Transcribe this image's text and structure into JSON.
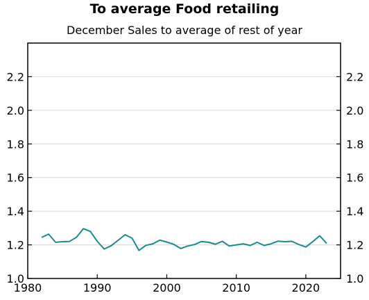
{
  "chart_data": {
    "type": "line",
    "title": "To average Food retailing",
    "subtitle": "December Sales to average of rest of year",
    "xlabel": "",
    "ylabel": "",
    "xlim": [
      1980,
      2025
    ],
    "ylim": [
      1.0,
      2.4
    ],
    "x_ticks": [
      1980,
      1990,
      2000,
      2010,
      2020
    ],
    "y_ticks": [
      1.0,
      1.2,
      1.4,
      1.6,
      1.8,
      2.0,
      2.2
    ],
    "y_tick_labels": [
      "1.0",
      "1.2",
      "1.4",
      "1.6",
      "1.8",
      "2.0",
      "2.2"
    ],
    "grid": "horizontal",
    "line_color": "#1a8a8a",
    "series": [
      {
        "x": [
          1982,
          1983,
          1984,
          1985,
          1986,
          1987,
          1988,
          1989,
          1990,
          1991,
          1992,
          1993,
          1994,
          1995,
          1996,
          1997,
          1998,
          1999,
          2000,
          2001,
          2002,
          2003,
          2004,
          2005,
          2006,
          2007,
          2008,
          2009,
          2010,
          2011,
          2012,
          2013,
          2014,
          2015,
          2016,
          2017,
          2018,
          2019,
          2020,
          2021,
          2022,
          2023
        ],
        "values": [
          1.244,
          1.264,
          1.215,
          1.219,
          1.22,
          1.245,
          1.296,
          1.28,
          1.221,
          1.175,
          1.195,
          1.227,
          1.26,
          1.24,
          1.167,
          1.197,
          1.206,
          1.228,
          1.217,
          1.203,
          1.178,
          1.193,
          1.202,
          1.22,
          1.215,
          1.204,
          1.221,
          1.193,
          1.2,
          1.206,
          1.196,
          1.215,
          1.196,
          1.206,
          1.222,
          1.219,
          1.221,
          1.202,
          1.187,
          1.219,
          1.254,
          1.208
        ]
      }
    ]
  }
}
